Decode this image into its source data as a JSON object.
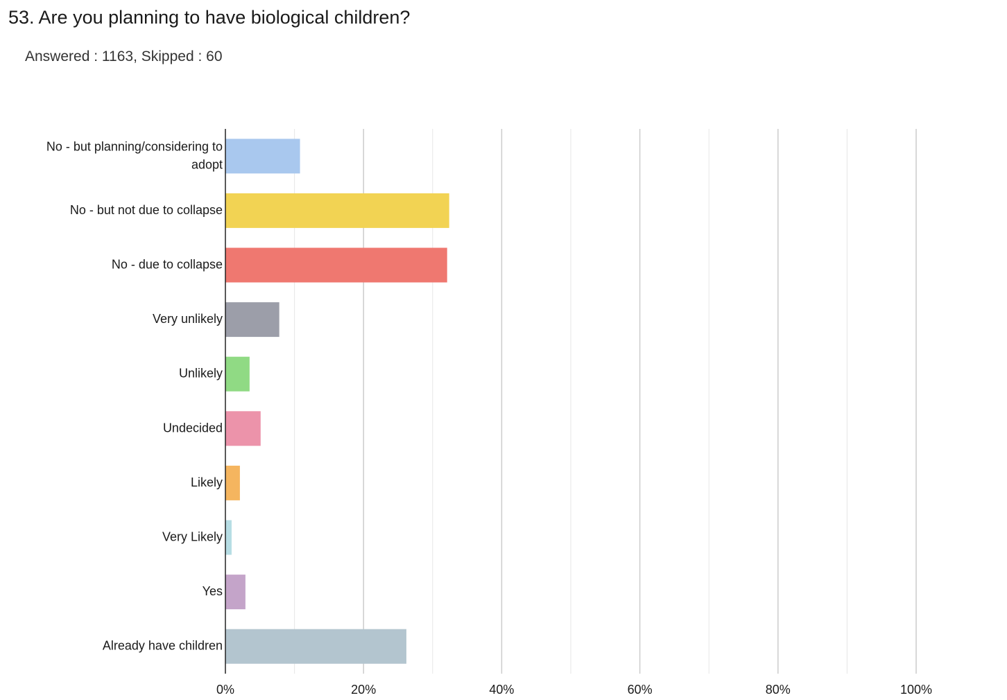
{
  "question": {
    "title": "53. Are you planning to have biological children?",
    "answered_label": "Answered :",
    "answered_count": "1163,",
    "skipped_label": "Skipped :",
    "skipped_count": "60"
  },
  "chart_data": {
    "type": "bar",
    "orientation": "horizontal",
    "categories": [
      "No - but planning/considering to adopt",
      "No - but not due to collapse",
      "No - due to collapse",
      "Very unlikely",
      "Unlikely",
      "Undecided",
      "Likely",
      "Very Likely",
      "Yes",
      "Already have children"
    ],
    "category_lines": [
      [
        "No - but planning/considering to",
        "adopt"
      ],
      [
        "No - but not due to collapse"
      ],
      [
        "No - due to collapse"
      ],
      [
        "Very unlikely"
      ],
      [
        "Unlikely"
      ],
      [
        "Undecided"
      ],
      [
        "Likely"
      ],
      [
        "Very Likely"
      ],
      [
        "Yes"
      ],
      [
        "Already have children"
      ]
    ],
    "values": [
      10.8,
      32.4,
      32.1,
      7.8,
      3.5,
      5.1,
      2.1,
      0.9,
      2.9,
      26.2
    ],
    "colors": [
      "#a9c8ee",
      "#f2d353",
      "#ef7870",
      "#9c9ea9",
      "#90da84",
      "#ec93aa",
      "#f5b55f",
      "#b6dde4",
      "#c4a4c9",
      "#b3c5cf"
    ],
    "xlim": [
      0,
      100
    ],
    "xticks": [
      "0%",
      "20%",
      "40%",
      "60%",
      "80%",
      "100%"
    ],
    "xtick_values": [
      0,
      20,
      40,
      60,
      80,
      100
    ],
    "minor_grid_values": [
      10,
      30,
      50,
      70,
      90
    ],
    "xlabel": "",
    "ylabel": "",
    "grid": true,
    "legend": "none"
  }
}
